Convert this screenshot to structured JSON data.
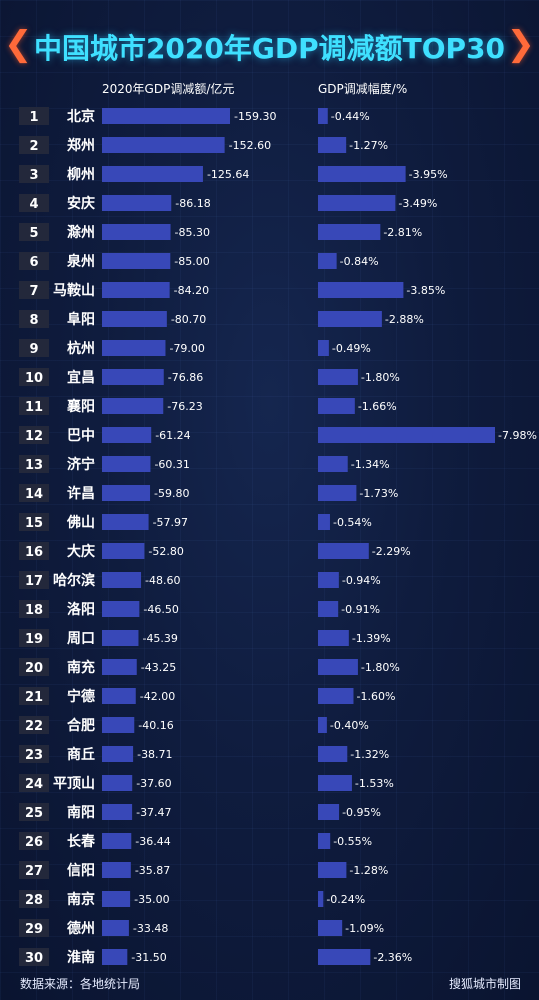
{
  "title": "中国城市2020年GDP调减额TOP30",
  "header_left": "2020年GDP调减额/亿元",
  "header_right": "GDP调减幅度/%",
  "footer": {
    "source": "数据来源：各地统计局",
    "credit": "搜狐城市制图"
  },
  "colors": {
    "title": "#3fe0ff",
    "chevron": "#ff6a3a",
    "bar": "#3848b8",
    "rank_box": "#23283b",
    "background": "#0f1c3e"
  },
  "chart_data": {
    "type": "bar",
    "orientation": "horizontal",
    "categories": [
      "北京",
      "郑州",
      "柳州",
      "安庆",
      "滁州",
      "泉州",
      "马鞍山",
      "阜阳",
      "杭州",
      "宜昌",
      "襄阳",
      "巴中",
      "济宁",
      "许昌",
      "佛山",
      "大庆",
      "哈尔滨",
      "洛阳",
      "周口",
      "南充",
      "宁德",
      "合肥",
      "商丘",
      "平顶山",
      "南阳",
      "长春",
      "信阳",
      "南京",
      "德州",
      "淮南"
    ],
    "ranks": [
      "1",
      "2",
      "3",
      "4",
      "5",
      "6",
      "7",
      "8",
      "9",
      "10",
      "11",
      "12",
      "13",
      "14",
      "15",
      "16",
      "17",
      "18",
      "19",
      "20",
      "21",
      "22",
      "23",
      "24",
      "25",
      "26",
      "27",
      "28",
      "29",
      "30"
    ],
    "series": [
      {
        "name": "2020年GDP调减额/亿元",
        "values": [
          -159.3,
          -152.6,
          -125.64,
          -86.18,
          -85.3,
          -85.0,
          -84.2,
          -80.7,
          -79.0,
          -76.86,
          -76.23,
          -61.24,
          -60.31,
          -59.8,
          -57.97,
          -52.8,
          -48.6,
          -46.5,
          -45.39,
          -43.25,
          -42.0,
          -40.16,
          -38.71,
          -37.6,
          -37.47,
          -36.44,
          -35.87,
          -35.0,
          -33.48,
          -31.5
        ],
        "labels": [
          "-159.30",
          "-152.60",
          "-125.64",
          "-86.18",
          "-85.30",
          "-85.00",
          "-84.20",
          "-80.70",
          "-79.00",
          "-76.86",
          "-76.23",
          "-61.24",
          "-60.31",
          "-59.80",
          "-57.97",
          "-52.80",
          "-48.60",
          "-46.50",
          "-45.39",
          "-43.25",
          "-42.00",
          "-40.16",
          "-38.71",
          "-37.60",
          "-37.47",
          "-36.44",
          "-35.87",
          "-35.00",
          "-33.48",
          "-31.50"
        ]
      },
      {
        "name": "GDP调减幅度/%",
        "values": [
          -0.44,
          -1.27,
          -3.95,
          -3.49,
          -2.81,
          -0.84,
          -3.85,
          -2.88,
          -0.49,
          -1.8,
          -1.66,
          -7.98,
          -1.34,
          -1.73,
          -0.54,
          -2.29,
          -0.94,
          -0.91,
          -1.39,
          -1.8,
          -1.6,
          -0.4,
          -1.32,
          -1.53,
          -0.95,
          -0.55,
          -1.28,
          -0.24,
          -1.09,
          -2.36
        ],
        "labels": [
          "-0.44%",
          "-1.27%",
          "-3.95%",
          "-3.49%",
          "-2.81%",
          "-0.84%",
          "-3.85%",
          "-2.88%",
          "-0.49%",
          "-1.80%",
          "-1.66%",
          "-7.98%",
          "-1.34%",
          "-1.73%",
          "-0.54%",
          "-2.29%",
          "-0.94%",
          "-0.91%",
          "-1.39%",
          "-1.80%",
          "-1.60%",
          "-0.40%",
          "-1.32%",
          "-1.53%",
          "-0.95%",
          "-0.55%",
          "-1.28%",
          "-0.24%",
          "-1.09%",
          "-2.36%"
        ]
      }
    ],
    "title": "中国城市2020年GDP调减额TOP30",
    "grid": false,
    "legend": "none"
  }
}
